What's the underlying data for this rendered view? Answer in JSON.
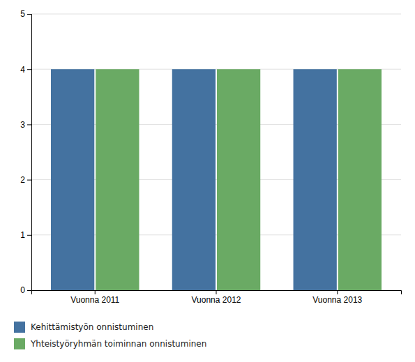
{
  "chart_data": {
    "type": "bar",
    "categories": [
      "Vuonna 2011",
      "Vuonna 2012",
      "Vuonna 2013"
    ],
    "series": [
      {
        "name": "Kehittämistyön onnistuminen",
        "color": "#4472a0",
        "values": [
          4,
          4,
          4
        ]
      },
      {
        "name": "Yhteistyöryhmän toiminnan onnistuminen",
        "color": "#6aaa64",
        "values": [
          4,
          4,
          4
        ]
      }
    ],
    "ylim": [
      0,
      5
    ],
    "yticks": [
      0,
      1,
      2,
      3,
      4,
      5
    ],
    "grid": true,
    "legend": "bottom"
  }
}
